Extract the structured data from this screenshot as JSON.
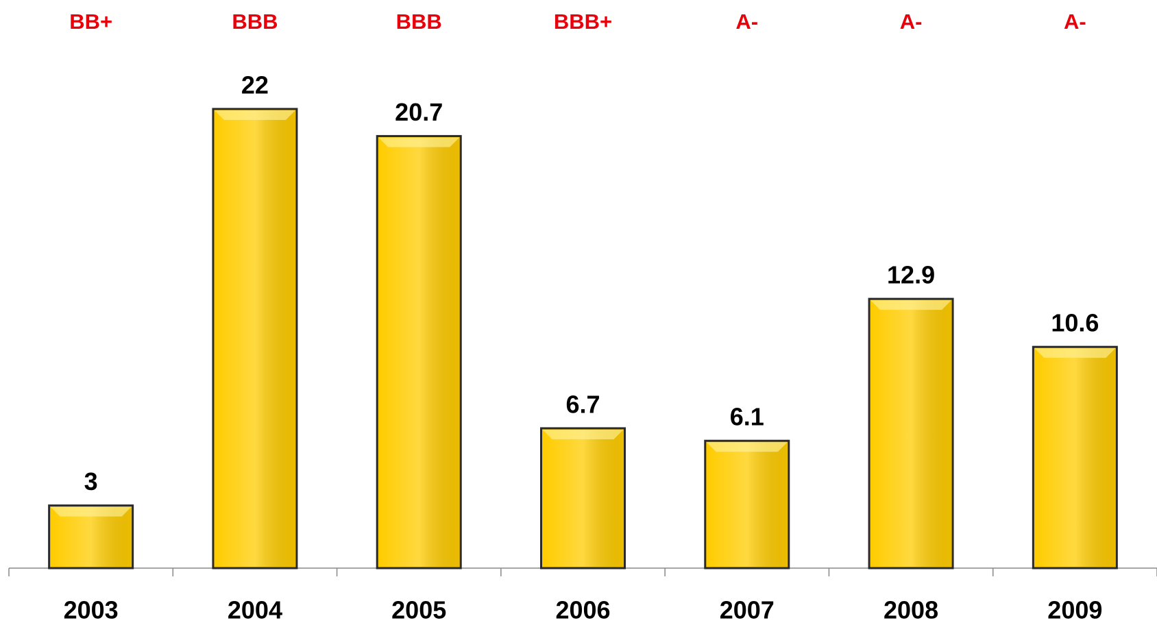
{
  "chart_data": {
    "type": "bar",
    "categories": [
      "2003",
      "2004",
      "2005",
      "2006",
      "2007",
      "2008",
      "2009"
    ],
    "values": [
      3,
      22,
      20.7,
      6.7,
      6.1,
      12.9,
      10.6
    ],
    "annotations": [
      "BB+",
      "BBB",
      "BBB",
      "BBB+",
      "A-",
      "A-",
      "A-"
    ],
    "color": "#ffcc00",
    "annotation_color": "#e8000b",
    "ylim": [
      0,
      22
    ]
  }
}
